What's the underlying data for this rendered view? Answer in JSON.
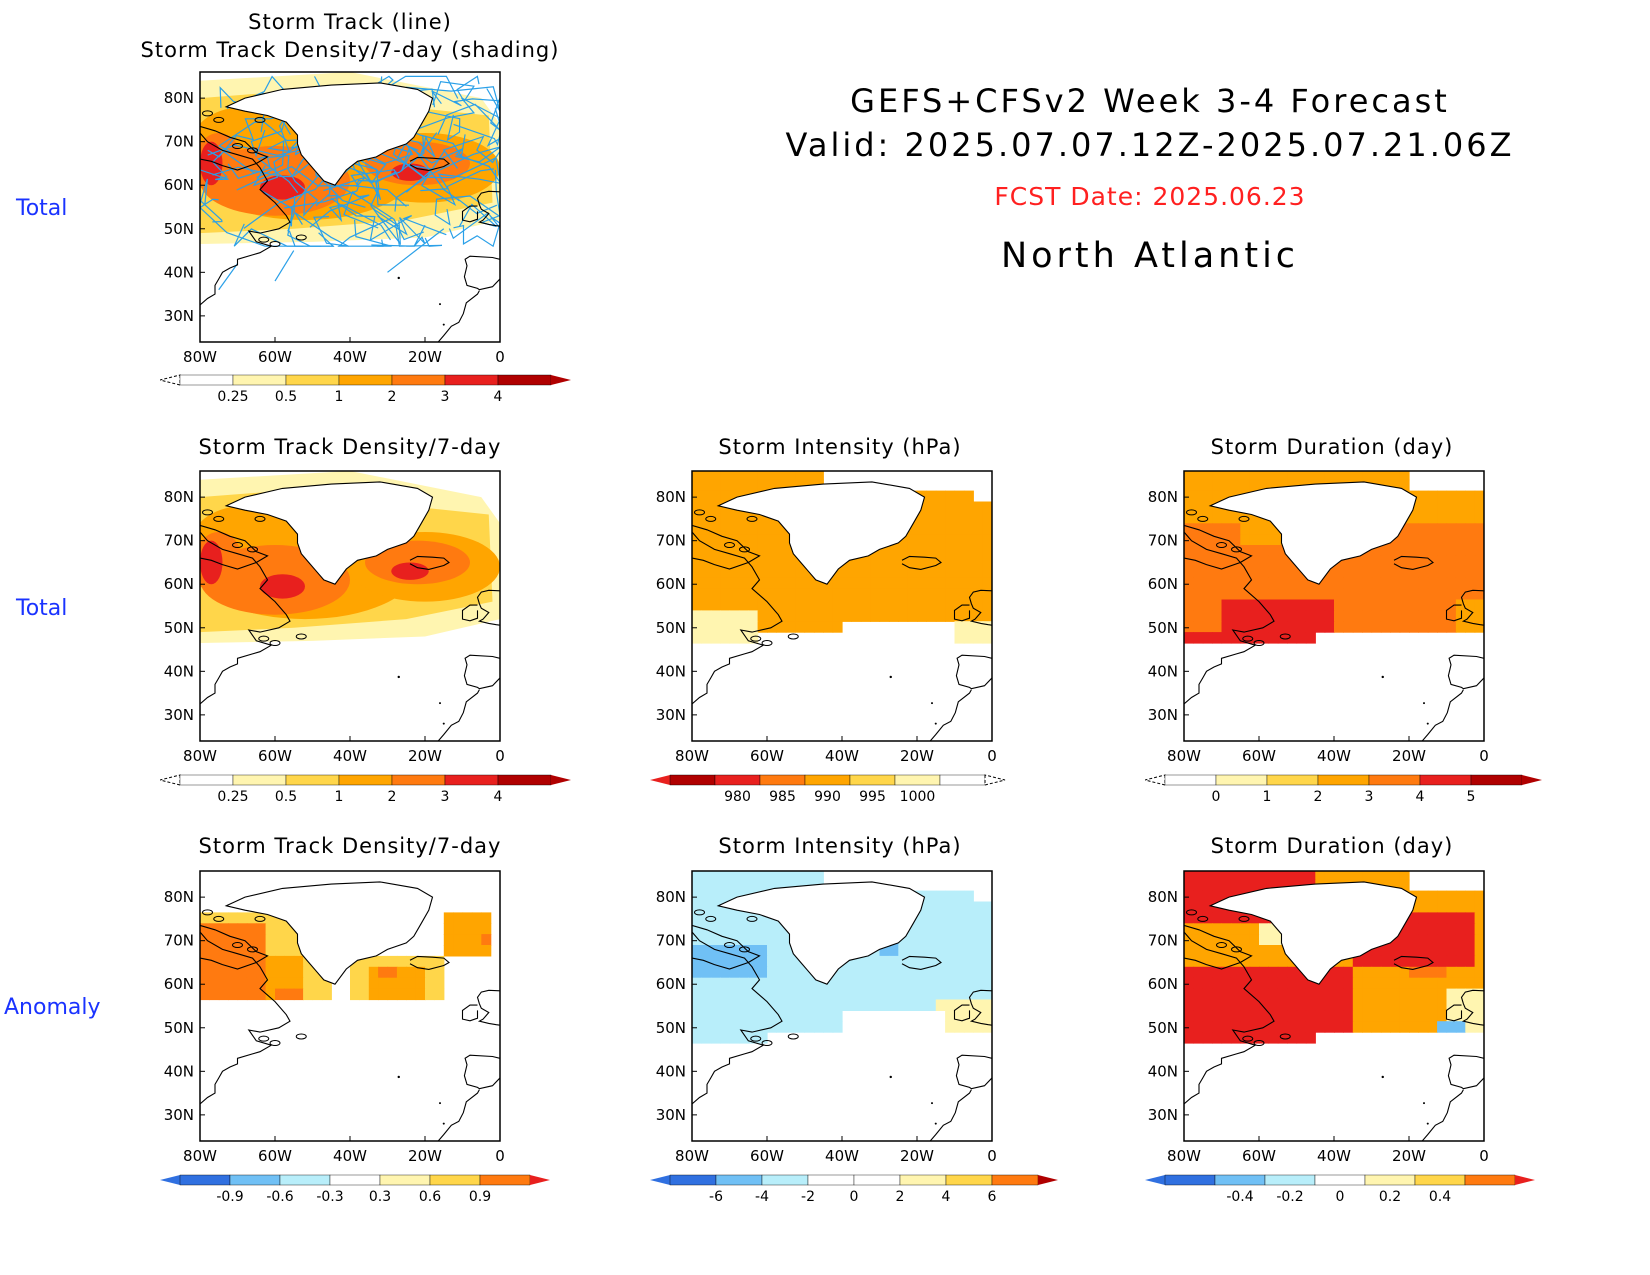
{
  "header": {
    "line1": "GEFS+CFSv2 Week 3-4 Forecast",
    "line2": "Valid: 2025.07.07.12Z-2025.07.21.06Z",
    "fcst": "FCST Date: 2025.06.23",
    "region": "North Atlantic"
  },
  "row_labels": [
    "Total",
    "Total",
    "Anomaly"
  ],
  "panels": {
    "p1": {
      "title1": "Storm Track (line)",
      "title2": "Storm Track Density/7-day (shading)",
      "bar_labels": [
        "0.25",
        "0.5",
        "1",
        "2",
        "3",
        "4"
      ]
    },
    "p2": {
      "title": "Storm Track Density/7-day",
      "bar_labels": [
        "0.25",
        "0.5",
        "1",
        "2",
        "3",
        "4"
      ]
    },
    "p3": {
      "title": "Storm Intensity (hPa)",
      "bar_labels": [
        "980",
        "985",
        "990",
        "995",
        "1000"
      ]
    },
    "p4": {
      "title": "Storm Duration (day)",
      "bar_labels": [
        "0",
        "1",
        "2",
        "3",
        "4",
        "5"
      ]
    },
    "p5": {
      "title": "Storm Track Density/7-day",
      "bar_labels": [
        "-0.9",
        "-0.6",
        "-0.3",
        "0.3",
        "0.6",
        "0.9"
      ]
    },
    "p6": {
      "title": "Storm Intensity (hPa)",
      "bar_labels": [
        "-6",
        "-4",
        "-2",
        "0",
        "2",
        "4",
        "6"
      ]
    },
    "p7": {
      "title": "Storm Duration (day)",
      "bar_labels": [
        "-0.4",
        "-0.2",
        "0",
        "0.2",
        "0.4"
      ]
    }
  },
  "axes": {
    "lat_labels": [
      "80N",
      "70N",
      "60N",
      "50N",
      "40N",
      "30N"
    ],
    "lon_labels": [
      "80W",
      "60W",
      "40W",
      "20W",
      "0"
    ]
  },
  "colors": {
    "warm": [
      "#fff5b0",
      "#ffd64a",
      "#ffa500",
      "#ff7a10",
      "#e8201e",
      "#b00000"
    ],
    "cool": [
      "#b8eefa",
      "#70c0f5",
      "#3070e0",
      "#0028b0"
    ],
    "track_line": "#2aa0e8",
    "row_label": "#1a33ff",
    "fcst": "#ff2020"
  }
}
